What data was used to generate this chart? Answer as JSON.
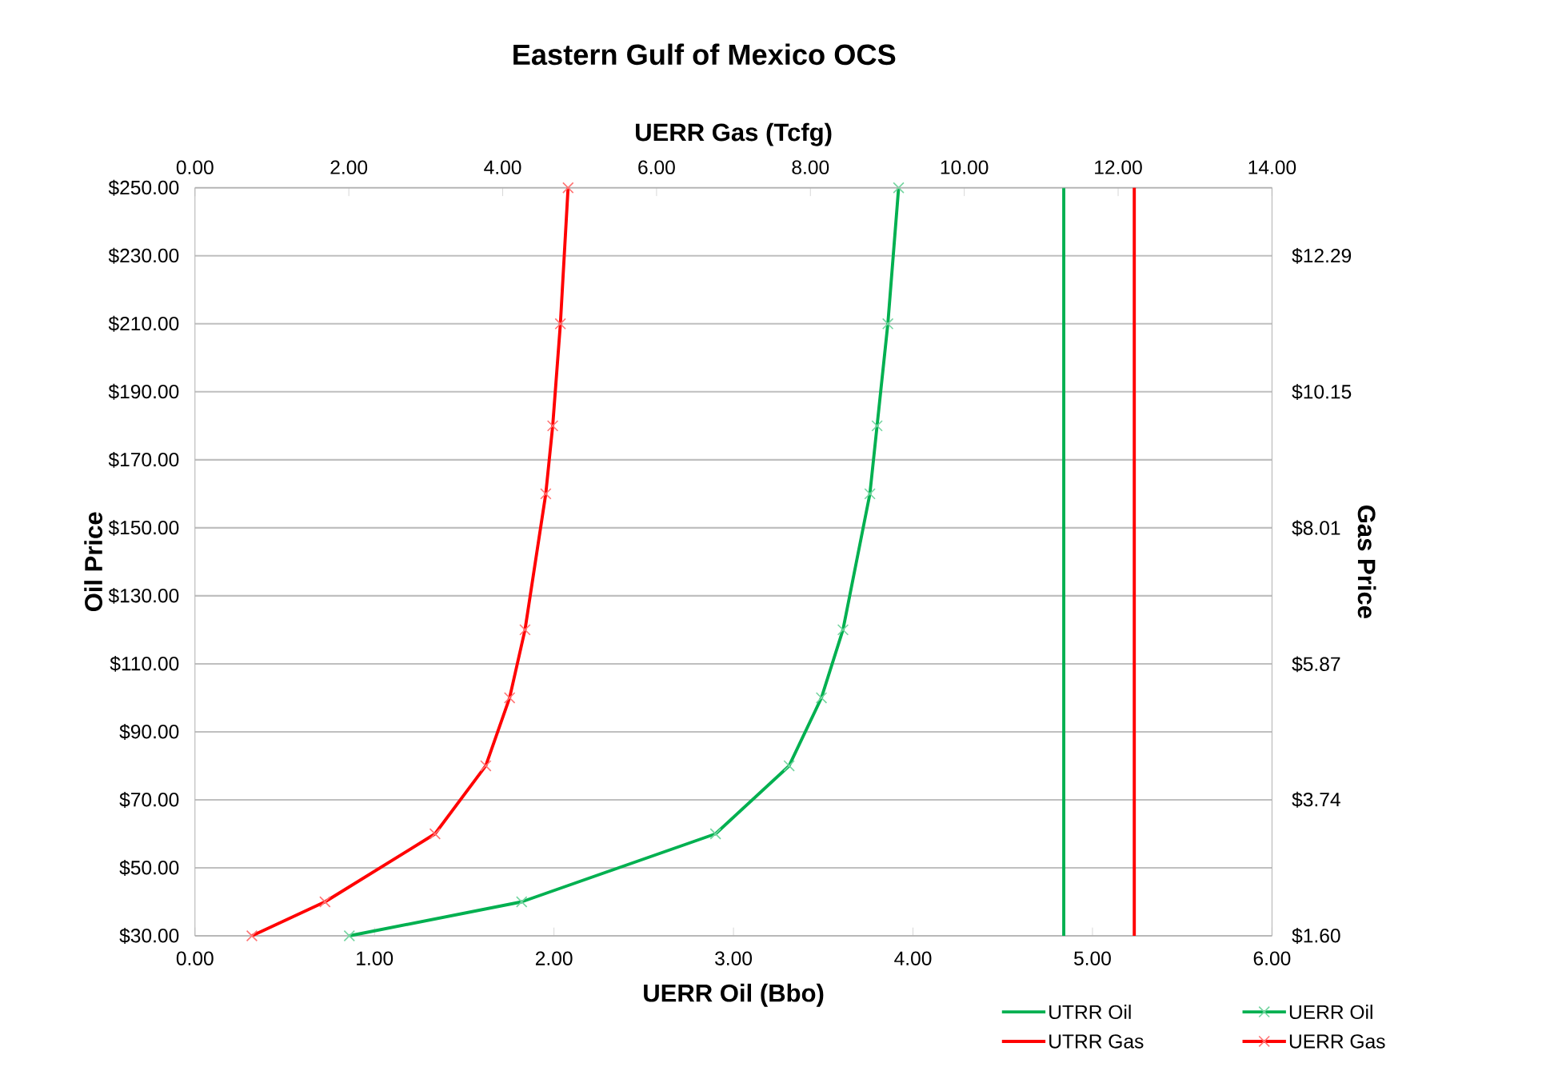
{
  "chart_data": {
    "type": "line",
    "title": "Eastern Gulf of Mexico OCS",
    "xlabel": "UERR Oil (Bbo)",
    "x2label": "UERR Gas (Tcfg)",
    "ylabel": "Oil Price",
    "y2label": "Gas Price",
    "xlim": [
      0,
      6
    ],
    "xticks": [
      {
        "value": 0,
        "label": "0.00"
      },
      {
        "value": 1,
        "label": "1.00"
      },
      {
        "value": 2,
        "label": "2.00"
      },
      {
        "value": 3,
        "label": "3.00"
      },
      {
        "value": 4,
        "label": "4.00"
      },
      {
        "value": 5,
        "label": "5.00"
      },
      {
        "value": 6,
        "label": "6.00"
      }
    ],
    "x2lim": [
      0,
      14
    ],
    "x2ticks": [
      {
        "value": 0,
        "label": "0.00"
      },
      {
        "value": 2,
        "label": "2.00"
      },
      {
        "value": 4,
        "label": "4.00"
      },
      {
        "value": 6,
        "label": "6.00"
      },
      {
        "value": 8,
        "label": "8.00"
      },
      {
        "value": 10,
        "label": "10.00"
      },
      {
        "value": 12,
        "label": "12.00"
      },
      {
        "value": 14,
        "label": "14.00"
      }
    ],
    "ylim": [
      30,
      250
    ],
    "yticks": [
      {
        "value": 30,
        "label": "$30.00"
      },
      {
        "value": 50,
        "label": "$50.00"
      },
      {
        "value": 70,
        "label": "$70.00"
      },
      {
        "value": 90,
        "label": "$90.00"
      },
      {
        "value": 110,
        "label": "$110.00"
      },
      {
        "value": 130,
        "label": "$130.00"
      },
      {
        "value": 150,
        "label": "$150.00"
      },
      {
        "value": 170,
        "label": "$170.00"
      },
      {
        "value": 190,
        "label": "$190.00"
      },
      {
        "value": 210,
        "label": "$210.00"
      },
      {
        "value": 230,
        "label": "$230.00"
      },
      {
        "value": 250,
        "label": "$250.00"
      }
    ],
    "y2lim": [
      1.6,
      13.36
    ],
    "y2ticks": [
      {
        "value": 1.6,
        "label": "$1.60"
      },
      {
        "value": 3.74,
        "label": "$3.74"
      },
      {
        "value": 5.87,
        "label": "$5.87"
      },
      {
        "value": 8.01,
        "label": "$8.01"
      },
      {
        "value": 10.15,
        "label": "$10.15"
      },
      {
        "value": 12.29,
        "label": "$12.29"
      }
    ],
    "grid": "y",
    "legend": "bottom right",
    "series": [
      {
        "name": "UTRR Oil",
        "color": "#00b050",
        "marker": "none",
        "x": [
          4.84,
          4.84
        ],
        "values": [
          30,
          250
        ]
      },
      {
        "name": "UERR Oil",
        "color": "#00b050",
        "marker": "cross",
        "x": [
          0.86,
          1.82,
          2.9,
          3.31,
          3.49,
          3.61,
          3.76,
          3.8,
          3.86,
          3.92
        ],
        "values": [
          30,
          40,
          60,
          80,
          100,
          120,
          160,
          180,
          210,
          250
        ]
      },
      {
        "name": "UTRR Gas",
        "color": "#ff0000",
        "marker": "none",
        "axis": "x2",
        "x": [
          12.21,
          12.21
        ],
        "values": [
          30,
          250
        ]
      },
      {
        "name": "UERR Gas",
        "color": "#ff0000",
        "marker": "cross",
        "axis": "x2",
        "x": [
          0.74,
          1.69,
          3.12,
          3.78,
          4.09,
          4.29,
          4.56,
          4.65,
          4.75,
          4.85
        ],
        "values": [
          30,
          40,
          60,
          80,
          100,
          120,
          160,
          180,
          210,
          250
        ]
      }
    ]
  }
}
